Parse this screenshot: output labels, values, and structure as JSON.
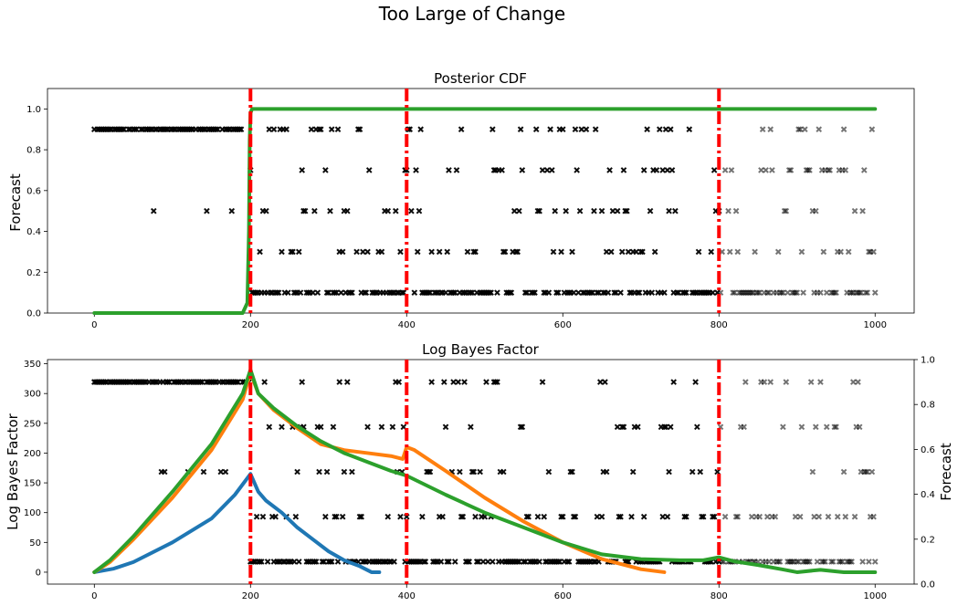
{
  "figure": {
    "suptitle": "Too Large of Change"
  },
  "chart_data": [
    {
      "type": "line",
      "title": "Posterior CDF",
      "xlabel": "",
      "ylabel": "Forecast",
      "xlim": [
        -60,
        1050
      ],
      "ylim": [
        0,
        1.1
      ],
      "xticks": [
        0,
        200,
        400,
        600,
        800,
        1000
      ],
      "yticks": [
        0.0,
        0.2,
        0.4,
        0.6,
        0.8,
        1.0
      ],
      "series": [
        {
          "color": "#2ca02c",
          "x": [
            0,
            190,
            196,
            198,
            199,
            200,
            202,
            205,
            1000
          ],
          "y": [
            0,
            0,
            0.05,
            0.4,
            0.85,
            0.98,
            1.0,
            1.0,
            1.0
          ]
        }
      ],
      "change_points": [
        200,
        400,
        800
      ],
      "change_point_color": "#ff0000",
      "forecast_values": [
        0.1,
        0.3,
        0.5,
        0.7,
        0.9
      ],
      "marker_color": "#000000"
    },
    {
      "type": "line",
      "title": "Log Bayes Factor",
      "xlabel": "",
      "ylabel": "Log Bayes Factor",
      "ylabel_right": "Forecast",
      "xlim": [
        -60,
        1050
      ],
      "ylim": [
        -20,
        357
      ],
      "ylim_right": [
        0,
        1.0
      ],
      "xticks": [
        0,
        200,
        400,
        600,
        800,
        1000
      ],
      "yticks": [
        0,
        50,
        100,
        150,
        200,
        250,
        300,
        350
      ],
      "yticks_right": [
        0.0,
        0.2,
        0.4,
        0.6,
        0.8,
        1.0
      ],
      "series": [
        {
          "color": "#1f77b4",
          "x": [
            0,
            25,
            50,
            100,
            150,
            180,
            200,
            210,
            220,
            240,
            260,
            280,
            300,
            320,
            340,
            355,
            365
          ],
          "y": [
            0,
            6,
            17,
            50,
            90,
            130,
            165,
            135,
            120,
            100,
            75,
            55,
            35,
            20,
            10,
            0,
            0
          ]
        },
        {
          "color": "#ff7f0e",
          "x": [
            0,
            20,
            50,
            100,
            150,
            190,
            200,
            210,
            230,
            260,
            290,
            320,
            350,
            380,
            395,
            400,
            410,
            450,
            500,
            550,
            600,
            650,
            700,
            730
          ],
          "y": [
            0,
            17,
            55,
            125,
            205,
            290,
            335,
            300,
            272,
            242,
            215,
            205,
            200,
            195,
            190,
            210,
            205,
            170,
            125,
            85,
            50,
            22,
            5,
            0
          ]
        },
        {
          "color": "#2ca02c",
          "x": [
            0,
            20,
            50,
            100,
            150,
            190,
            200,
            210,
            230,
            260,
            290,
            320,
            350,
            380,
            400,
            450,
            500,
            550,
            600,
            650,
            700,
            750,
            780,
            800,
            820,
            850,
            880,
            900,
            930,
            960,
            1000
          ],
          "y": [
            0,
            20,
            60,
            135,
            215,
            300,
            340,
            300,
            275,
            245,
            220,
            200,
            185,
            170,
            162,
            130,
            100,
            75,
            50,
            30,
            22,
            20,
            20,
            25,
            18,
            12,
            5,
            0,
            4,
            0,
            0
          ]
        }
      ],
      "change_points": [
        200,
        400,
        800
      ],
      "change_point_color": "#ff0000",
      "forecast_values": [
        0.1,
        0.3,
        0.5,
        0.7,
        0.9
      ],
      "marker_color": "#000000"
    }
  ]
}
